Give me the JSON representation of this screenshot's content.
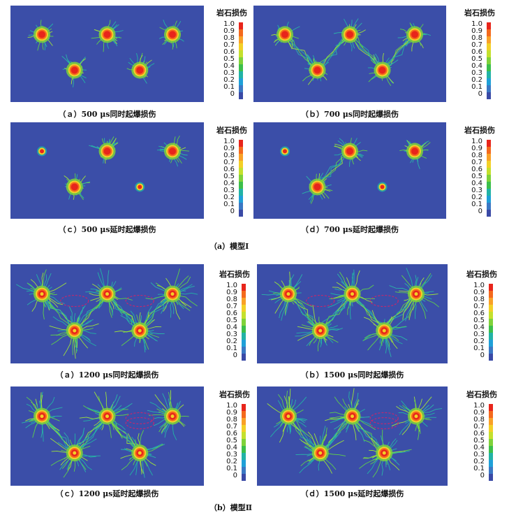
{
  "figure": {
    "colorbar": {
      "title": "岩石损伤",
      "ticks": [
        "1.0",
        "0.9",
        "0.8",
        "0.7",
        "0.6",
        "0.5",
        "0.4",
        "0.3",
        "0.2",
        "0.1",
        "0"
      ],
      "colors": [
        "#e8251b",
        "#f46a1d",
        "#f9a127",
        "#f3d027",
        "#c4e02d",
        "#7fd23a",
        "#3cbf4a",
        "#22b3a6",
        "#1fa0d8",
        "#3b78c4",
        "#3a4aa6"
      ]
    },
    "background_color": "#3b4ea8",
    "model1": {
      "caption": "（a）模型Ⅰ",
      "panels": [
        {
          "id": "m1a",
          "caption": "（ａ）500 μs同时起爆损伤",
          "holes": [
            [
              1,
              1
            ],
            [
              2,
              1
            ],
            [
              3,
              1
            ],
            [
              1.5,
              2
            ],
            [
              2.5,
              2
            ]
          ],
          "small": [],
          "links": [],
          "ellipses": false
        },
        {
          "id": "m1b",
          "caption": "（ｂ）700 μs同时起爆损伤",
          "holes": [
            [
              1,
              1
            ],
            [
              2,
              1
            ],
            [
              3,
              1
            ],
            [
              1.5,
              2
            ],
            [
              2.5,
              2
            ]
          ],
          "small": [],
          "links": [
            [
              0,
              3
            ],
            [
              3,
              1
            ],
            [
              1,
              4
            ],
            [
              4,
              2
            ]
          ],
          "ellipses": false
        },
        {
          "id": "m1c",
          "caption": "（ｃ）500 μs延时起爆损伤",
          "holes": [
            [
              2,
              1
            ],
            [
              3,
              1
            ],
            [
              1.5,
              2
            ]
          ],
          "small": [
            [
              1,
              1
            ],
            [
              2.5,
              2
            ]
          ],
          "links": [],
          "ellipses": false
        },
        {
          "id": "m1d",
          "caption": "（ｄ）700 μs延时起爆损伤",
          "holes": [
            [
              2,
              1
            ],
            [
              3,
              1
            ],
            [
              1.5,
              2
            ]
          ],
          "small": [
            [
              1,
              1
            ],
            [
              2.5,
              2
            ]
          ],
          "links": [
            [
              2,
              0
            ]
          ],
          "ellipses": false
        }
      ]
    },
    "model2": {
      "caption": "（b）模型Ⅱ",
      "panels": [
        {
          "id": "m2a",
          "caption": "（ａ）1200 μs同时起爆损伤",
          "holes": [
            [
              1,
              1
            ],
            [
              2,
              1
            ],
            [
              3,
              1
            ],
            [
              1.5,
              2
            ],
            [
              2.5,
              2
            ]
          ],
          "small": [],
          "links": [
            [
              0,
              3
            ],
            [
              3,
              1
            ],
            [
              1,
              4
            ],
            [
              4,
              2
            ]
          ],
          "ellipses": true
        },
        {
          "id": "m2b",
          "caption": "（ｂ）1500 μs同时起爆损伤",
          "holes": [
            [
              1,
              1
            ],
            [
              2,
              1
            ],
            [
              3,
              1
            ],
            [
              1.5,
              2
            ],
            [
              2.5,
              2
            ]
          ],
          "small": [],
          "links": [
            [
              0,
              3
            ],
            [
              3,
              1
            ],
            [
              1,
              4
            ],
            [
              4,
              2
            ]
          ],
          "ellipses": true
        },
        {
          "id": "m2c",
          "caption": "（ｃ）1200 μs延时起爆损伤",
          "holes": [
            [
              1,
              1
            ],
            [
              2,
              1
            ],
            [
              3,
              1
            ],
            [
              1.5,
              2
            ],
            [
              2.5,
              2
            ]
          ],
          "small": [],
          "links": [
            [
              0,
              3
            ],
            [
              3,
              1
            ],
            [
              1,
              4
            ]
          ],
          "ellipses": true
        },
        {
          "id": "m2d",
          "caption": "（ｄ）1500 μs延时起爆损伤",
          "holes": [
            [
              1,
              1
            ],
            [
              2,
              1
            ],
            [
              3,
              1
            ],
            [
              1.5,
              2
            ],
            [
              2.5,
              2
            ]
          ],
          "small": [],
          "links": [
            [
              0,
              3
            ],
            [
              3,
              1
            ],
            [
              1,
              4
            ]
          ],
          "ellipses": true
        }
      ]
    }
  }
}
